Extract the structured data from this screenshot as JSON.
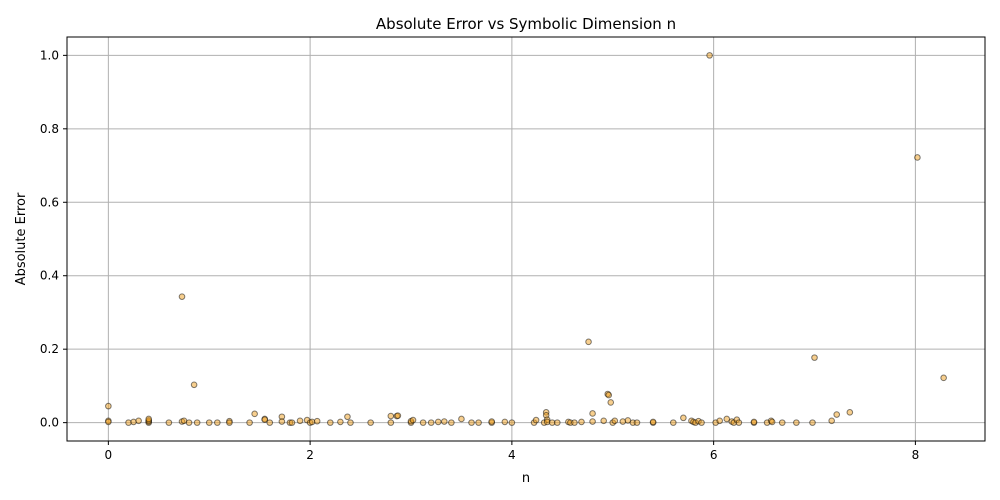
{
  "chart_data": {
    "type": "scatter",
    "title": "Absolute Error vs Symbolic Dimension n",
    "xlabel": "n",
    "ylabel": "Absolute Error",
    "xlim": [
      -0.41,
      8.69
    ],
    "ylim": [
      -0.05,
      1.05
    ],
    "xticks": [
      0,
      2,
      4,
      6,
      8
    ],
    "yticks": [
      0.0,
      0.2,
      0.4,
      0.6,
      0.8,
      1.0
    ],
    "xtick_labels": [
      "0",
      "2",
      "4",
      "6",
      "8"
    ],
    "ytick_labels": [
      "0.0",
      "0.2",
      "0.4",
      "0.6",
      "0.8",
      "1.0"
    ],
    "grid": true,
    "marker_fill": "#f0a020",
    "marker_edge": "#000000",
    "marker_alpha": 0.5,
    "points": [
      {
        "x": 0.0,
        "y": 0.045
      },
      {
        "x": 0.0,
        "y": 0.005
      },
      {
        "x": 0.0,
        "y": 0.002
      },
      {
        "x": 0.2,
        "y": 0.0
      },
      {
        "x": 0.25,
        "y": 0.002
      },
      {
        "x": 0.3,
        "y": 0.005
      },
      {
        "x": 0.4,
        "y": 0.0
      },
      {
        "x": 0.4,
        "y": 0.003
      },
      {
        "x": 0.4,
        "y": 0.006
      },
      {
        "x": 0.4,
        "y": 0.01
      },
      {
        "x": 0.6,
        "y": 0.0
      },
      {
        "x": 0.73,
        "y": 0.343
      },
      {
        "x": 0.73,
        "y": 0.003
      },
      {
        "x": 0.75,
        "y": 0.005
      },
      {
        "x": 0.8,
        "y": 0.0
      },
      {
        "x": 0.85,
        "y": 0.103
      },
      {
        "x": 0.88,
        "y": 0.0
      },
      {
        "x": 1.0,
        "y": 0.0
      },
      {
        "x": 1.08,
        "y": 0.0
      },
      {
        "x": 1.2,
        "y": 0.004
      },
      {
        "x": 1.2,
        "y": 0.0
      },
      {
        "x": 1.4,
        "y": 0.0
      },
      {
        "x": 1.45,
        "y": 0.024
      },
      {
        "x": 1.55,
        "y": 0.01
      },
      {
        "x": 1.55,
        "y": 0.008
      },
      {
        "x": 1.6,
        "y": 0.0
      },
      {
        "x": 1.72,
        "y": 0.016
      },
      {
        "x": 1.72,
        "y": 0.003
      },
      {
        "x": 1.8,
        "y": 0.0
      },
      {
        "x": 1.82,
        "y": 0.0
      },
      {
        "x": 1.9,
        "y": 0.005
      },
      {
        "x": 1.97,
        "y": 0.007
      },
      {
        "x": 2.0,
        "y": 0.0
      },
      {
        "x": 2.02,
        "y": 0.002
      },
      {
        "x": 2.07,
        "y": 0.004
      },
      {
        "x": 2.2,
        "y": 0.0
      },
      {
        "x": 2.3,
        "y": 0.002
      },
      {
        "x": 2.37,
        "y": 0.016
      },
      {
        "x": 2.4,
        "y": 0.0
      },
      {
        "x": 2.6,
        "y": 0.0
      },
      {
        "x": 2.8,
        "y": 0.018
      },
      {
        "x": 2.8,
        "y": 0.0
      },
      {
        "x": 2.86,
        "y": 0.018
      },
      {
        "x": 2.87,
        "y": 0.019
      },
      {
        "x": 3.0,
        "y": 0.0
      },
      {
        "x": 3.0,
        "y": 0.004
      },
      {
        "x": 3.02,
        "y": 0.007
      },
      {
        "x": 3.12,
        "y": 0.0
      },
      {
        "x": 3.2,
        "y": 0.0
      },
      {
        "x": 3.27,
        "y": 0.002
      },
      {
        "x": 3.33,
        "y": 0.003
      },
      {
        "x": 3.4,
        "y": 0.0
      },
      {
        "x": 3.5,
        "y": 0.01
      },
      {
        "x": 3.6,
        "y": 0.0
      },
      {
        "x": 3.67,
        "y": 0.0
      },
      {
        "x": 3.8,
        "y": 0.0
      },
      {
        "x": 3.8,
        "y": 0.003
      },
      {
        "x": 3.93,
        "y": 0.002
      },
      {
        "x": 4.0,
        "y": 0.0
      },
      {
        "x": 4.22,
        "y": 0.0
      },
      {
        "x": 4.24,
        "y": 0.007
      },
      {
        "x": 4.32,
        "y": 0.0
      },
      {
        "x": 4.34,
        "y": 0.028
      },
      {
        "x": 4.34,
        "y": 0.02
      },
      {
        "x": 4.35,
        "y": 0.008
      },
      {
        "x": 4.35,
        "y": 0.002
      },
      {
        "x": 4.4,
        "y": 0.0
      },
      {
        "x": 4.45,
        "y": 0.0
      },
      {
        "x": 4.56,
        "y": 0.002
      },
      {
        "x": 4.58,
        "y": 0.0
      },
      {
        "x": 4.62,
        "y": 0.0
      },
      {
        "x": 4.69,
        "y": 0.002
      },
      {
        "x": 4.76,
        "y": 0.22
      },
      {
        "x": 4.8,
        "y": 0.025
      },
      {
        "x": 4.8,
        "y": 0.003
      },
      {
        "x": 4.91,
        "y": 0.005
      },
      {
        "x": 4.95,
        "y": 0.078
      },
      {
        "x": 4.96,
        "y": 0.075
      },
      {
        "x": 4.98,
        "y": 0.055
      },
      {
        "x": 5.0,
        "y": 0.0
      },
      {
        "x": 5.02,
        "y": 0.005
      },
      {
        "x": 5.1,
        "y": 0.003
      },
      {
        "x": 5.15,
        "y": 0.006
      },
      {
        "x": 5.2,
        "y": 0.0
      },
      {
        "x": 5.24,
        "y": 0.0
      },
      {
        "x": 5.4,
        "y": 0.0
      },
      {
        "x": 5.4,
        "y": 0.002
      },
      {
        "x": 5.6,
        "y": 0.0
      },
      {
        "x": 5.7,
        "y": 0.013
      },
      {
        "x": 5.78,
        "y": 0.005
      },
      {
        "x": 5.8,
        "y": 0.002
      },
      {
        "x": 5.82,
        "y": 0.0
      },
      {
        "x": 5.85,
        "y": 0.004
      },
      {
        "x": 5.88,
        "y": 0.0
      },
      {
        "x": 5.96,
        "y": 1.0
      },
      {
        "x": 6.02,
        "y": 0.0
      },
      {
        "x": 6.06,
        "y": 0.005
      },
      {
        "x": 6.13,
        "y": 0.01
      },
      {
        "x": 6.18,
        "y": 0.003
      },
      {
        "x": 6.2,
        "y": 0.0
      },
      {
        "x": 6.23,
        "y": 0.008
      },
      {
        "x": 6.25,
        "y": 0.0
      },
      {
        "x": 6.4,
        "y": 0.0
      },
      {
        "x": 6.4,
        "y": 0.002
      },
      {
        "x": 6.53,
        "y": 0.0
      },
      {
        "x": 6.57,
        "y": 0.005
      },
      {
        "x": 6.58,
        "y": 0.002
      },
      {
        "x": 6.68,
        "y": 0.0
      },
      {
        "x": 6.82,
        "y": 0.0
      },
      {
        "x": 6.98,
        "y": 0.0
      },
      {
        "x": 7.0,
        "y": 0.177
      },
      {
        "x": 7.17,
        "y": 0.005
      },
      {
        "x": 7.22,
        "y": 0.022
      },
      {
        "x": 7.35,
        "y": 0.028
      },
      {
        "x": 8.02,
        "y": 0.722
      },
      {
        "x": 8.28,
        "y": 0.122
      }
    ]
  }
}
